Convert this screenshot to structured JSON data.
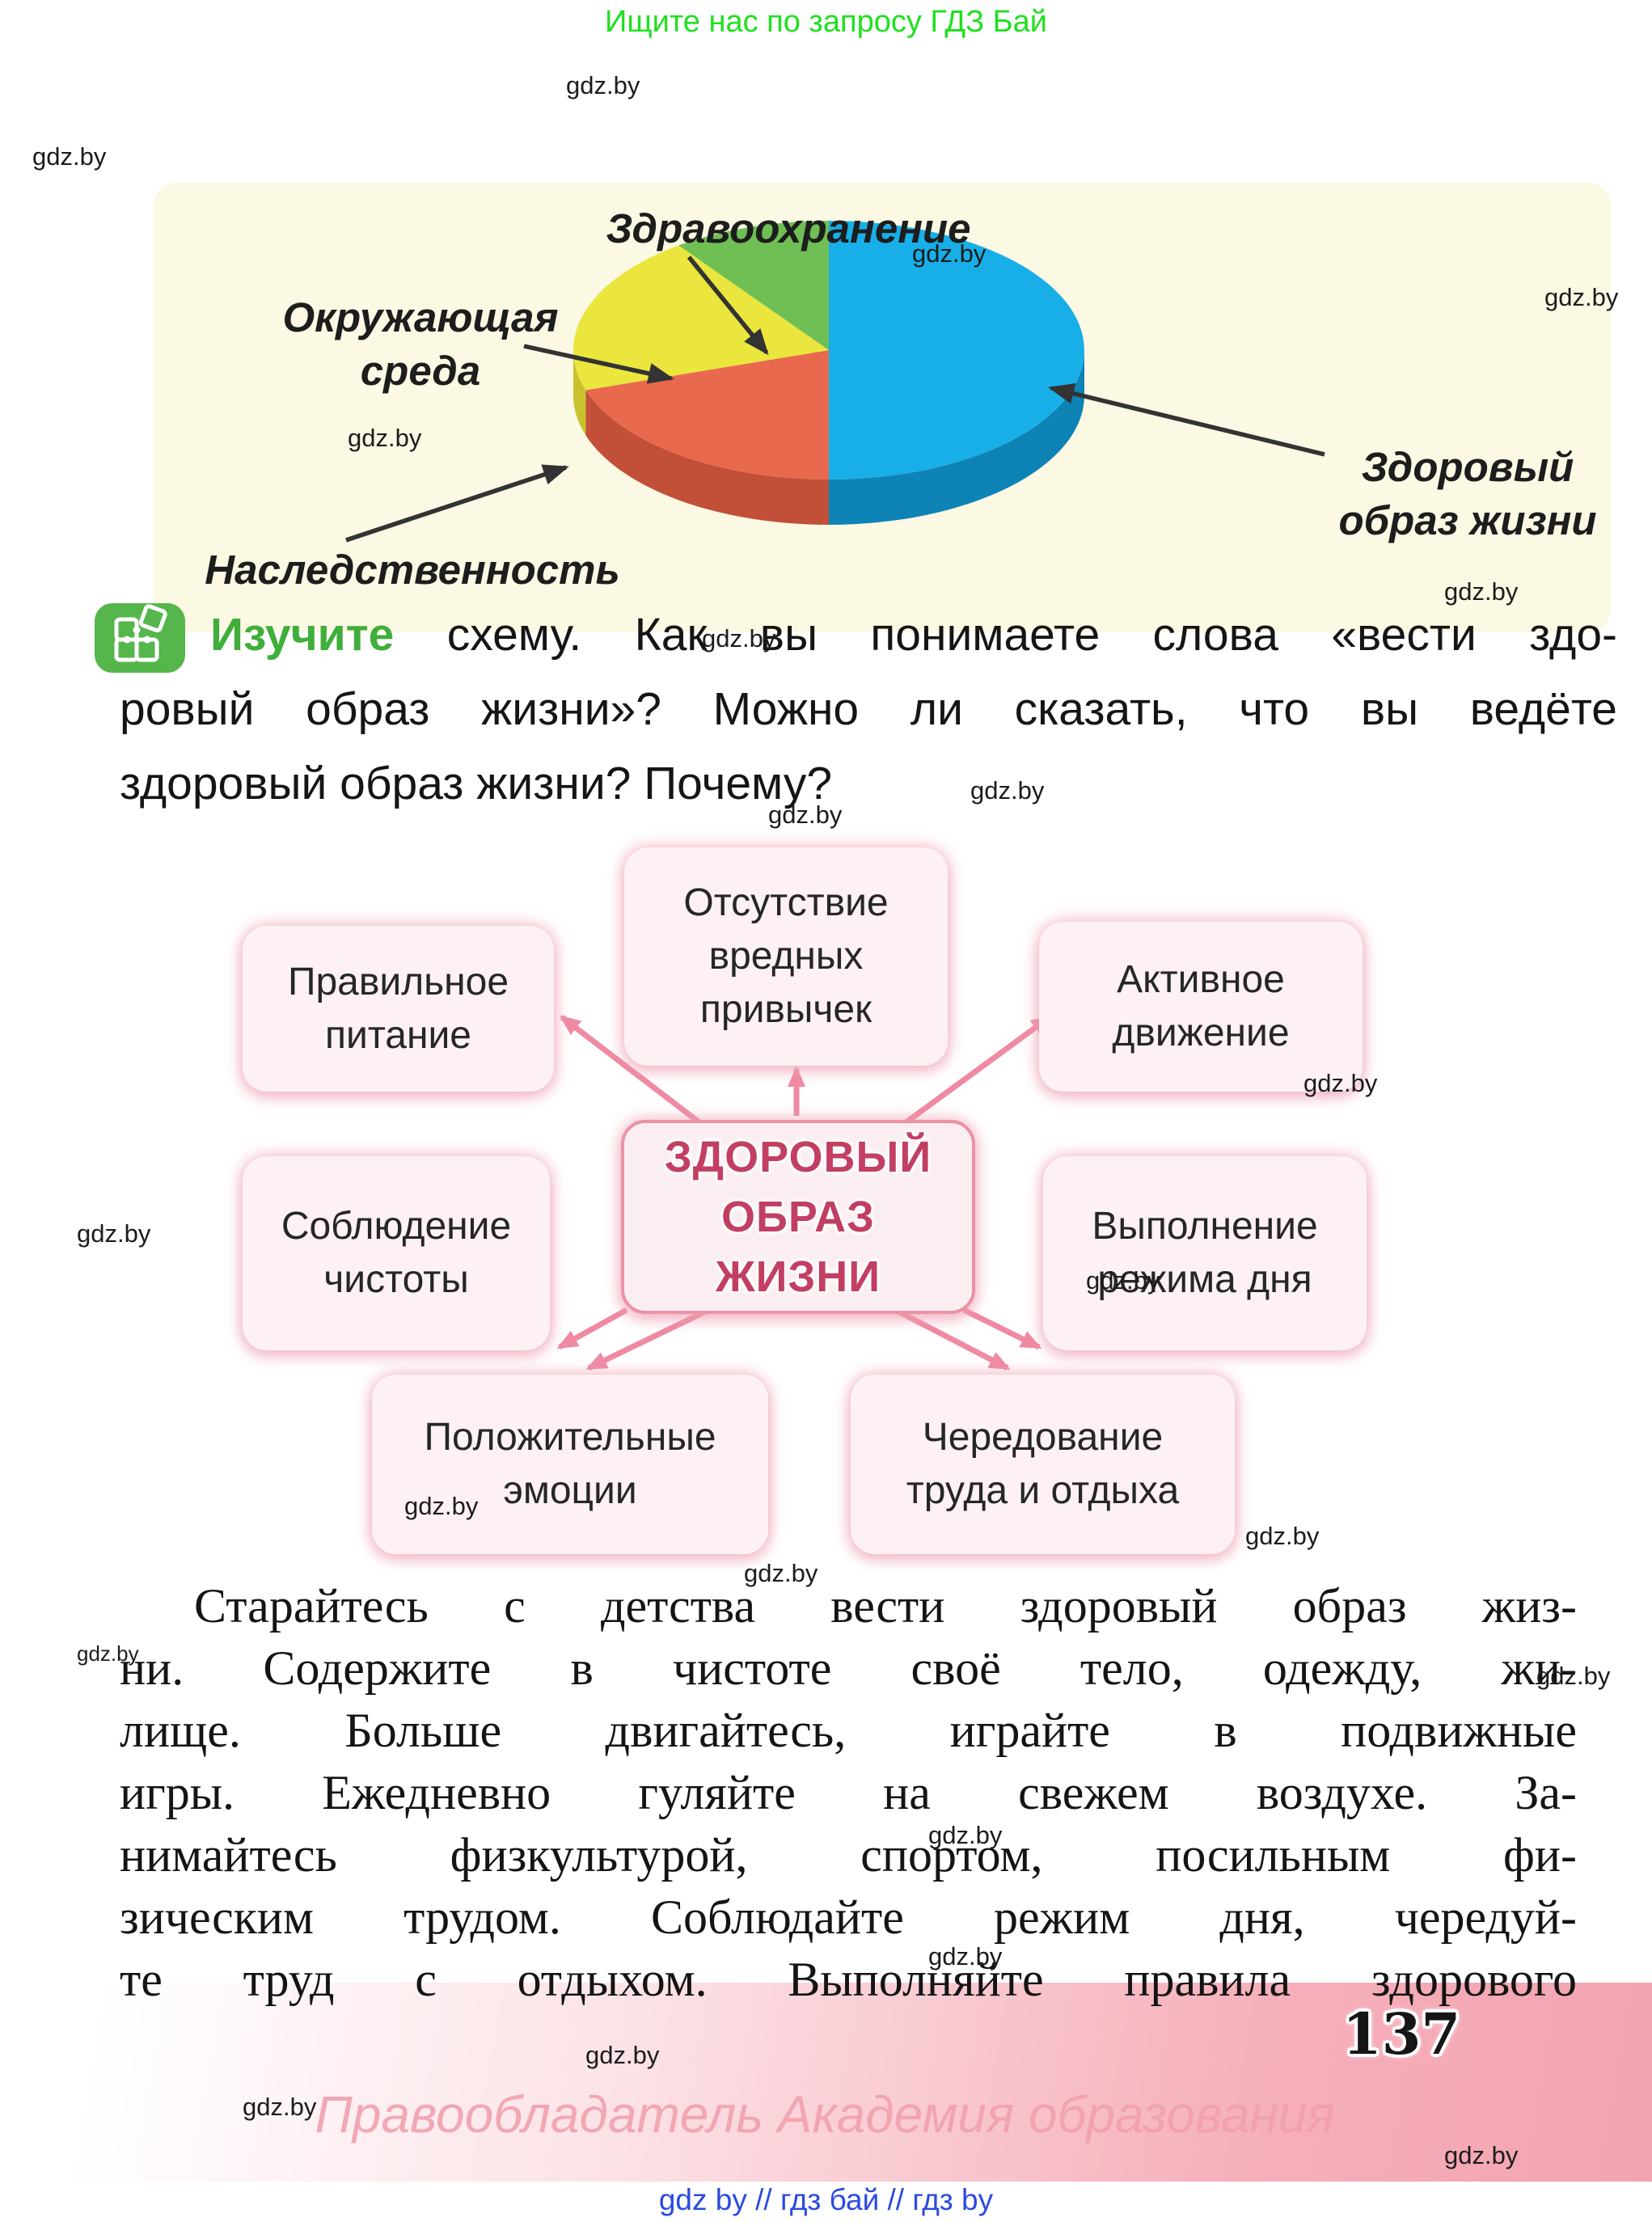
{
  "page": {
    "promo_top": "Ищите нас по запросу ГДЗ Бай",
    "watermark": "gdz.by",
    "page_number": "137",
    "copyright_line": "Правообладатель Академия образования",
    "bottom_links": "gdz by  //  гдз бай  //  гдз by"
  },
  "chart_data": {
    "type": "pie",
    "style": "3d",
    "direction": "clockwise",
    "start_angle_deg_from_top": 0,
    "values_estimated_from_slice_angles": true,
    "slices": [
      {
        "label": "Здоровый образ жизни",
        "value_pct": 50,
        "color": "#18aee8",
        "side_color": "#0e83b6"
      },
      {
        "label": "Наследственность",
        "value_pct": 20,
        "color": "#e9694e",
        "side_color": "#c24f38"
      },
      {
        "label": "Окружающая среда",
        "value_pct": 20,
        "color": "#eae63d",
        "side_color": "#c8c22f"
      },
      {
        "label": "Здравоохранение",
        "value_pct": 10,
        "color": "#6fbf55",
        "side_color": "#57a143"
      }
    ],
    "legend_position": "callout-labels-with-arrows",
    "background_panel_color": "#fbf8e3"
  },
  "pie_labels": {
    "healthcare": "Здравоохранение",
    "environment_l1": "Окружающая",
    "environment_l2": "среда",
    "heredity": "Наследственность",
    "lifestyle_l1": "Здоровый",
    "lifestyle_l2": "образ жизни"
  },
  "task": {
    "lead_word": "Изучите",
    "line1_rest": " схему. Как вы понимаете слова «вести здо-",
    "line2": "ровый образ жизни»? Можно ли сказать, что вы ведёте",
    "line3": "здоровый образ жизни? Почему?"
  },
  "diagram": {
    "center_l1": "ЗДОРОВЫЙ",
    "center_l2": "ОБРАЗ",
    "center_l3": "ЖИЗНИ",
    "nodes": {
      "nutrition_l1": "Правильное",
      "nutrition_l2": "питание",
      "no_bad_habits_l1": "Отсутствие",
      "no_bad_habits_l2": "вредных",
      "no_bad_habits_l3": "привычек",
      "active_l1": "Активное",
      "active_l2": "движение",
      "cleanliness_l1": "Соблюдение",
      "cleanliness_l2": "чистоты",
      "regimen_l1": "Выполнение",
      "regimen_l2": "режима дня",
      "emotions_l1": "Положительные",
      "emotions_l2": "эмоции",
      "alternation_l1": "Чередование",
      "alternation_l2": "труда и отдыха"
    }
  },
  "body": {
    "line1": "Старайтесь с детства вести здоровый образ жиз-",
    "line2": "ни. Содержите в чистоте своё тело, одежду, жи-",
    "line3": "лище. Больше двигайтесь, играйте в подвижные",
    "line4": "игры. Ежедневно гуляйте на свежем воздухе. За-",
    "line5": "нимайтесь физкультурой, спортом, посильным фи-",
    "line6": "зическим трудом. Соблюдайте режим дня, чередуй-",
    "line7": "те труд с отдыхом. Выполняйте правила здорового"
  },
  "colors": {
    "accent_green": "#3fae3b",
    "icon_green": "#55b64b",
    "promo_green": "#1fe01f",
    "diagram_pink_arrow": "#ef8aa2",
    "diagram_center_text": "#c23f63",
    "footer_pink": "#f3a3b0",
    "links_blue": "#2b4ae0"
  }
}
